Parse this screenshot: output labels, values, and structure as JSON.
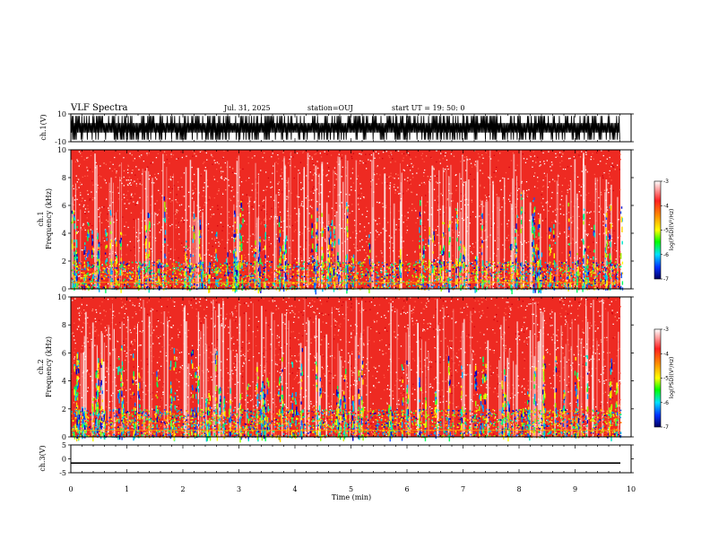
{
  "header": {
    "title": "VLF Spectra",
    "date": "Jul. 31, 2025",
    "station": "station=OUJ",
    "start": "start UT = 19: 50: 0"
  },
  "chart_data": [
    {
      "type": "line",
      "name": "ch1-waveform",
      "ylabel": "ch.1(V)",
      "ylim": [
        -10,
        10
      ],
      "yticks": [
        "10",
        "-10"
      ],
      "xlim": [
        0,
        10
      ],
      "note": "dense saturated waveform between roughly -8 V and +8 V"
    },
    {
      "type": "heatmap",
      "name": "ch1-spectrogram",
      "ylabel_ch": "ch.1",
      "ylabel": "Frequency (kHz)",
      "ylim": [
        0,
        10
      ],
      "yticks": [
        "0",
        "2",
        "4",
        "6",
        "8",
        "10"
      ],
      "xlim": [
        0,
        10
      ],
      "colorbar": {
        "label": "log(PSD)(V²/Hz)",
        "range": [
          -7,
          -3
        ],
        "ticks": [
          "-3",
          "-4",
          "-5",
          "-6",
          "-7"
        ]
      }
    },
    {
      "type": "heatmap",
      "name": "ch2-spectrogram",
      "ylabel_ch": "ch.2",
      "ylabel": "Frequency (kHz)",
      "ylim": [
        0,
        10
      ],
      "yticks": [
        "0",
        "2",
        "4",
        "6",
        "8",
        "10"
      ],
      "xlim": [
        0,
        10
      ],
      "colorbar": {
        "label": "log(PSD)(V²/Hz)",
        "range": [
          -7,
          -3
        ],
        "ticks": [
          "-3",
          "-4",
          "-5",
          "-6",
          "-7"
        ]
      }
    },
    {
      "type": "line",
      "name": "ch3-waveform",
      "ylabel": "ch.3(V)",
      "ylim": [
        -5,
        5
      ],
      "yticks": [
        "5",
        "0",
        "-5"
      ],
      "xlim": [
        0,
        10
      ],
      "values_const": -1.5
    }
  ],
  "xaxis": {
    "label": "Time (min)",
    "ticks": [
      "0",
      "1",
      "2",
      "3",
      "4",
      "5",
      "6",
      "7",
      "8",
      "9",
      "10"
    ]
  }
}
